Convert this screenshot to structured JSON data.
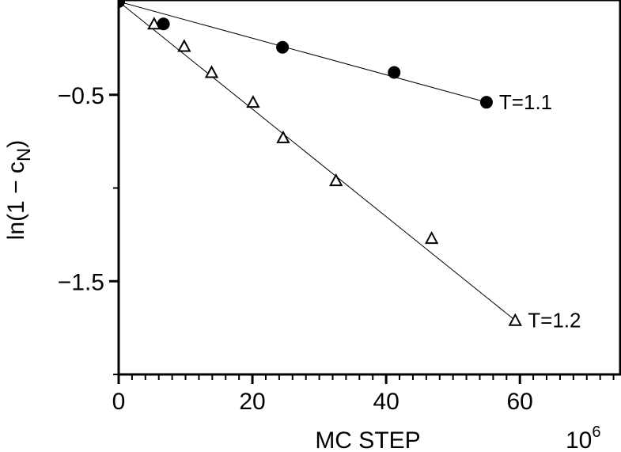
{
  "chart_data": {
    "type": "scatter",
    "title": "",
    "xlabel": "MC STEP",
    "x_multiplier": "10",
    "x_multiplier_exp": "6",
    "ylabel_main": "ln(1 − c",
    "ylabel_sub": "N",
    "ylabel_close": ")",
    "xlim": [
      0,
      75
    ],
    "ylim": [
      -2.0,
      0.0
    ],
    "xticks": [
      0,
      20,
      40,
      60
    ],
    "xtick_labels": [
      "0",
      "20",
      "40",
      "60"
    ],
    "x_minor_step": 2,
    "yticks": [
      -0.5,
      -1.5
    ],
    "ytick_labels": [
      "−0.5",
      "−1.5"
    ],
    "y_minor_ticks": [
      -1.0,
      -2.0
    ],
    "grid": false,
    "series": [
      {
        "name": "T=1.1",
        "marker": "filled-circle",
        "x": [
          0,
          6.7,
          24.5,
          41.2,
          55.0
        ],
        "y": [
          0.0,
          -0.12,
          -0.245,
          -0.38,
          -0.54
        ],
        "fit_line": {
          "x": [
            0,
            55.0
          ],
          "y": [
            0.0,
            -0.54
          ]
        }
      },
      {
        "name": "T=1.2",
        "marker": "open-triangle",
        "x": [
          5.3,
          9.8,
          13.9,
          20.1,
          24.6,
          32.5,
          46.8,
          59.3
        ],
        "y": [
          -0.12,
          -0.24,
          -0.38,
          -0.54,
          -0.73,
          -0.96,
          -1.27,
          -1.71
        ],
        "fit_line": {
          "x": [
            0,
            59.3
          ],
          "y": [
            0.0,
            -1.71
          ]
        }
      }
    ]
  }
}
